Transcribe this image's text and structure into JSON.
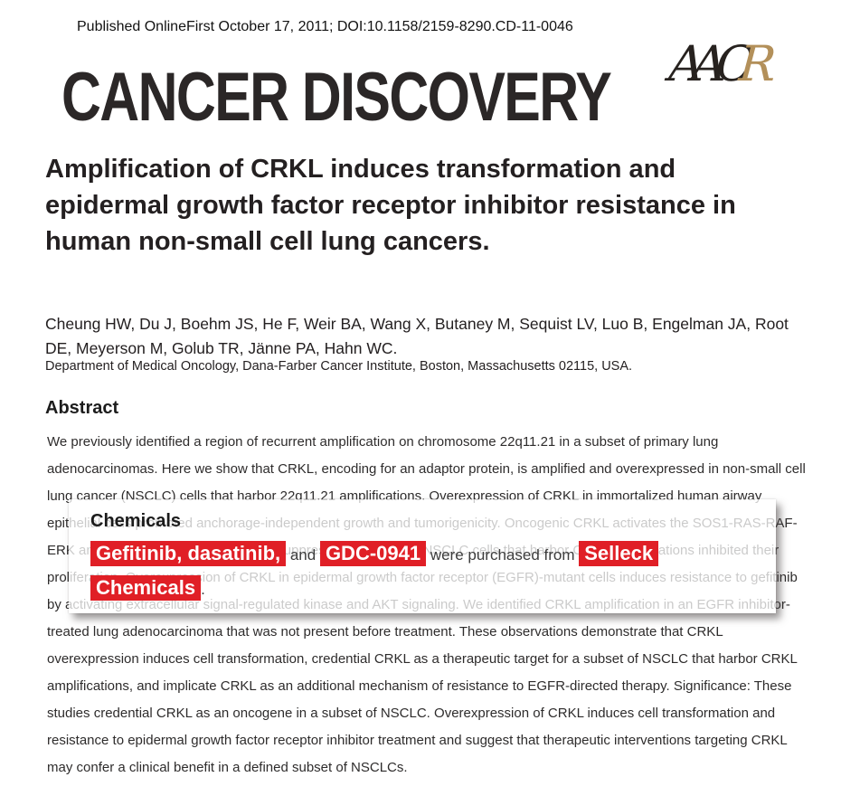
{
  "header": {
    "published_line": "Published OnlineFirst October 17, 2011; DOI:10.1158/2159-8290.CD-11-0046",
    "journal_name": "CANCER DISCOVERY",
    "logo": {
      "letters": [
        "A",
        "A",
        "C",
        "R"
      ],
      "dark_color": "#27221f",
      "gold_color": "#b3905a"
    }
  },
  "article": {
    "title": "Amplification of CRKL induces transformation and epidermal growth factor receptor inhibitor resistance in human non-small cell lung cancers.",
    "authors": "Cheung HW, Du J, Boehm JS, He F, Weir BA, Wang X, Butaney M, Sequist LV, Luo B, Engelman JA, Root DE, Meyerson M, Golub TR, Jänne PA, Hahn WC.",
    "affiliation": "Department of Medical Oncology, Dana-Farber Cancer Institute, Boston, Massachusetts 02115, USA.",
    "abstract_heading": "Abstract",
    "abstract_text": "We previously identified a region of recurrent amplification on chromosome 22q11.21 in a subset of primary lung adenocarcinomas. Here we show that CRKL, encoding for an adaptor protein, is amplified and overexpressed in non-small cell lung cancer (NSCLC) cells that harbor 22q11.21 amplifications. Overexpression of CRKL in immortalized human airway epithelial cells promoted anchorage-independent growth and tumorigenicity. Oncogenic CRKL activates the SOS1-RAS-RAF-ERK and SRC-C3G-RAP1 pathways. Suppression of CRKL in NSCLC cells that harbor CRKL amplifications inhibited their proliferation. Overexpression of CRKL in epidermal growth factor receptor (EGFR)-mutant cells induces resistance to gefitinib by activating extracellular signal-regulated kinase and AKT signaling. We identified CRKL amplification in an EGFR inhibitor-treated lung adenocarcinoma that was not present before treatment. These observations demonstrate that CRKL overexpression induces cell transformation, credential CRKL as a therapeutic target for a subset of NSCLC that harbor CRKL amplifications, and implicate CRKL as an additional mechanism of resistance to EGFR-directed therapy. Significance: These studies credential CRKL as an oncogene in a subset of NSCLC. Overexpression of CRKL induces cell transformation and resistance to epidermal growth factor receptor inhibitor treatment and suggest that therapeutic interventions targeting CRKL may confer a clinical benefit in a defined subset of NSCLCs."
  },
  "popup": {
    "heading": "Chemicals",
    "highlight_color": "#e01f26",
    "segments": [
      {
        "text": "Gefitinib, dasatinib,",
        "highlight": true
      },
      {
        "text": " and ",
        "highlight": false
      },
      {
        "text": "GDC-0941",
        "highlight": true
      },
      {
        "text": " were purchased from ",
        "highlight": false
      },
      {
        "text": "Selleck Chemicals",
        "highlight": true
      },
      {
        "text": ".",
        "highlight": false
      }
    ]
  }
}
